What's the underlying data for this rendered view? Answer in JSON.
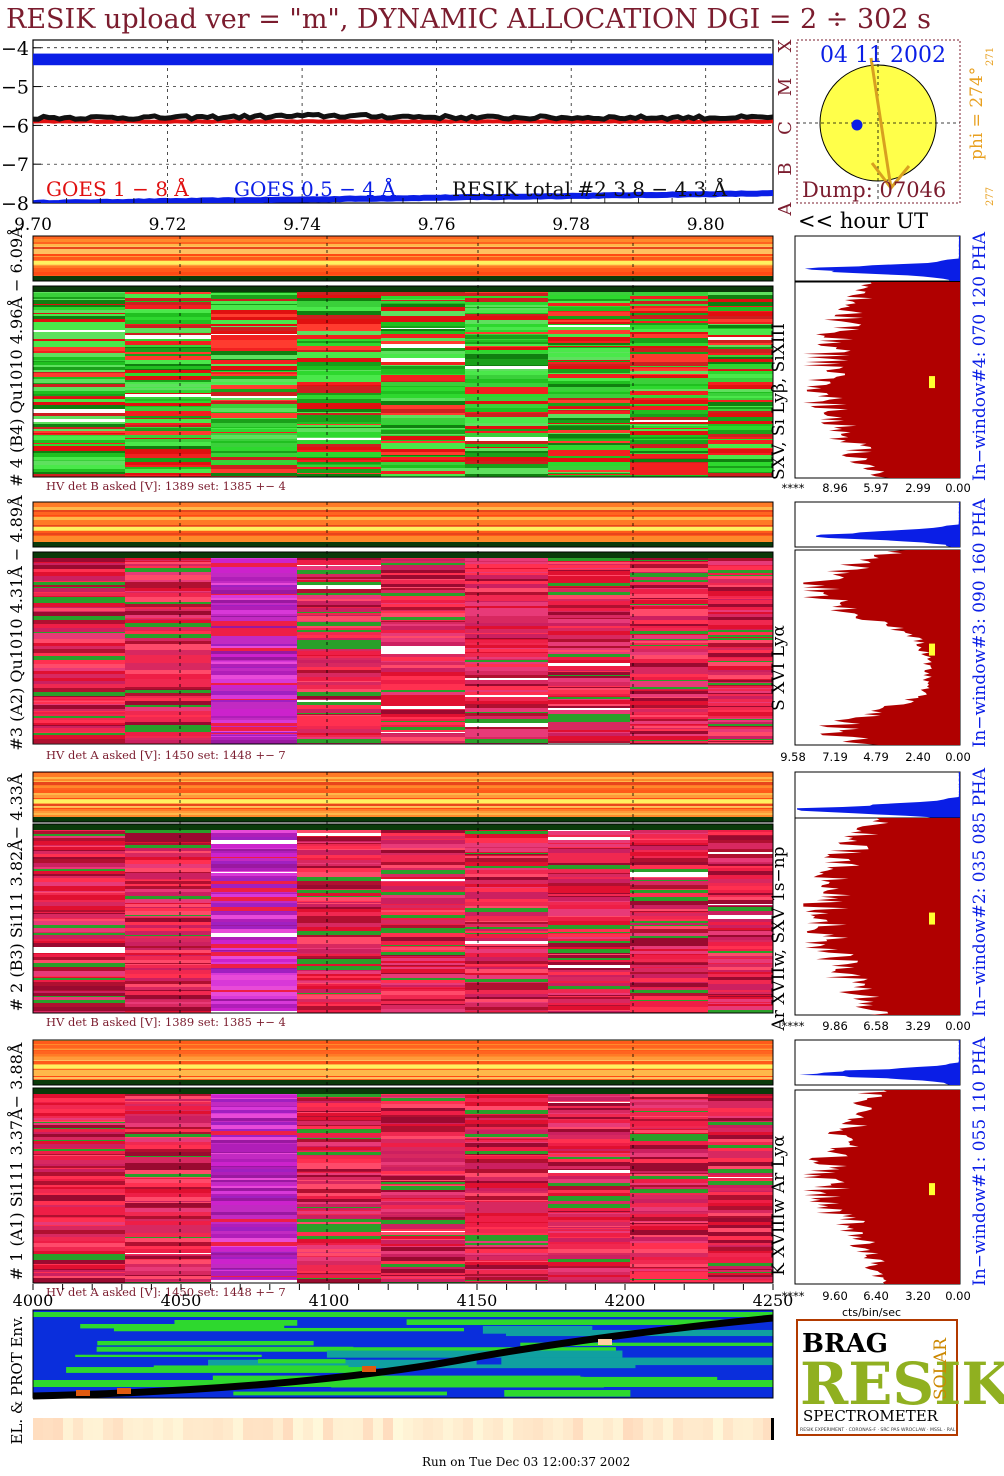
{
  "header": {
    "title": "RESIK upload ver = \"m\", DYNAMIC ALLOCATION  DGI =   2 ÷ 302 s"
  },
  "footer": {
    "run_text": "Run on Tue Dec 03 12:00:37 2002"
  },
  "colors": {
    "title": "#7b1c2e",
    "blue": "#0a1ee6",
    "red": "#e01010",
    "darkred": "#b00000",
    "orange": "#e8a020",
    "sun": "#ffff4a"
  },
  "sun_panel": {
    "date": "04 11 2002",
    "dump": "Dump: 07046",
    "phi": "phi = 274°",
    "phi_small": "271",
    "bottom_small": "277",
    "class_letters": [
      "X",
      "M",
      "C",
      "B",
      "A"
    ]
  },
  "hour_label": "<< hour UT",
  "chart_data": [
    {
      "type": "line",
      "name": "goes-panel",
      "xlim": [
        9.7,
        9.81
      ],
      "ylim": [
        -8,
        -3.8
      ],
      "x_ticks": [
        "9.70",
        "9.72",
        "9.74",
        "9.76",
        "9.78",
        "9.80"
      ],
      "y_ticks": [
        "−4",
        "−5",
        "−6",
        "−7",
        "−8"
      ],
      "legend": [
        "GOES 1 − 8 Å",
        "GOES 0.5 − 4 Å",
        "RESIK total #2  3.8 − 4.3 Å"
      ],
      "series": [
        {
          "name": "GOES 1 − 8 Å",
          "values": [
            -5.9,
            -5.9,
            -5.9,
            -5.9,
            -5.9,
            -5.9
          ]
        },
        {
          "name": "GOES 0.5 − 4 Å",
          "values": [
            -8.0,
            -7.95,
            -7.9,
            -7.85,
            -7.8,
            -7.75
          ]
        },
        {
          "name": "RESIK total #2  3.8 − 4.3 Å",
          "values": [
            -5.8,
            -5.8,
            -5.75,
            -5.8,
            -5.8,
            -5.8
          ]
        }
      ],
      "band": {
        "values": [
          -4.15,
          -4.45
        ]
      }
    },
    {
      "type": "heatmap",
      "name": "window-4",
      "ylabel": "# 4 (B4) Qu1010 4.96Å − 6.09Å",
      "lines": "SXV, Si Lyβ, SiXIII",
      "pha": "In−window#4:  070 120 PHA",
      "hv": "HV det B asked [V]:  1389 set:  1385 +−   4",
      "hist_ticks": [
        "****",
        "8.96",
        "5.97",
        "2.99",
        "0.00"
      ],
      "columns": [
        "green",
        "green",
        "green",
        "green",
        "green",
        "green",
        "green",
        "green",
        "green"
      ]
    },
    {
      "type": "heatmap",
      "name": "window-3",
      "ylabel": "#3 (A2) Qu1010  4.31Å − 4.89Å",
      "lines": "S XVI Lyα",
      "pha": "In−window#3:  090 160 PHA",
      "hv": "HV det A asked [V]:  1450 set:  1448 +−    7",
      "hist_ticks": [
        "9.58",
        "7.19",
        "4.79",
        "2.40",
        "0.00"
      ],
      "columns": [
        "red",
        "red",
        "magenta",
        "red",
        "red",
        "red",
        "red",
        "red",
        "red"
      ]
    },
    {
      "type": "heatmap",
      "name": "window-2",
      "ylabel": "# 2 (B3) Si111  3.82Å− 4.33Å",
      "lines": "Ar XVIIw,  SXV 1s−np",
      "pha": "In−window#2:  035 085 PHA",
      "hv": "HV det B asked [V]:  1389 set:  1385 +−   4",
      "hist_ticks": [
        "****",
        "9.86",
        "6.58",
        "3.29",
        "0.00"
      ],
      "columns": [
        "red",
        "red",
        "magenta",
        "red",
        "red",
        "red",
        "red",
        "red",
        "red"
      ]
    },
    {
      "type": "heatmap",
      "name": "window-1",
      "ylabel": "# 1 (A1) Si111  3.37Å− 3.88Å",
      "lines": "K XVIIIw  Ar Lyα",
      "pha": "In−window#1:  055 110 PHA",
      "hv": "HV det A asked [V]:  1450 set:  1448 +−    7",
      "hist_ticks": [
        "****",
        "9.60",
        "6.40",
        "3.20",
        "0.00"
      ],
      "columns": [
        "red",
        "red",
        "magenta",
        "red",
        "red",
        "red",
        "red",
        "red",
        "red"
      ]
    },
    {
      "type": "area",
      "name": "environment",
      "ylabel": "EL. & PROT Env.",
      "x_ticks": [
        "4000",
        "4050",
        "4100",
        "4150",
        "4200",
        "4250"
      ],
      "xlim": [
        4000,
        4250
      ],
      "hist_xlabel": "cts/bin/sec"
    }
  ],
  "logo": {
    "big": "RESIK",
    "sub": "SPECTROMETER",
    "small_words": [
      "BRAG",
      "SOLAR"
    ],
    "fine_print": "RESIK EXPERIMENT · CORONAS-F · SRC PAS WROCLAW · MSSL · RAL"
  }
}
